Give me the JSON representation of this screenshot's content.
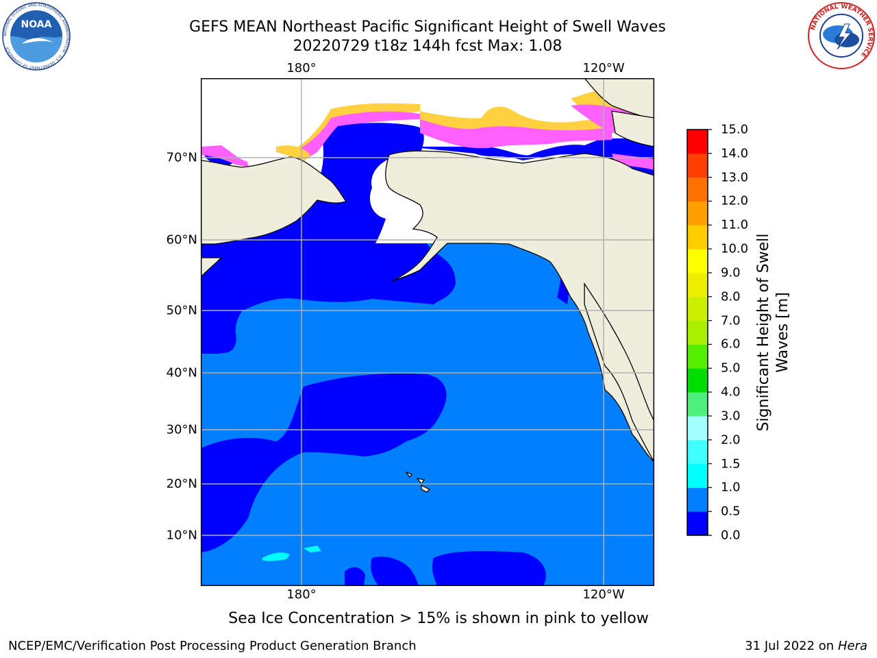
{
  "title_line1": "GEFS MEAN Northeast Pacific Significant Height of Swell Waves",
  "title_line2": "20220729 t18z 144h fcst   Max: 1.08",
  "lon_labels": [
    "180°",
    "120°W"
  ],
  "lat_labels": [
    "70°N",
    "60°N",
    "50°N",
    "40°N",
    "30°N",
    "20°N",
    "10°N"
  ],
  "colorbar": {
    "title": "Significant Height of Swell Waves [m]",
    "ticks": [
      "0.0",
      "0.5",
      "1.0",
      "1.5",
      "2.0",
      "3.0",
      "4.0",
      "5.0",
      "6.0",
      "7.0",
      "8.0",
      "9.0",
      "10.0",
      "11.0",
      "12.0",
      "13.0",
      "14.0",
      "15.0"
    ],
    "colors": [
      "#0000ff",
      "#0080ff",
      "#00ffff",
      "#40ffff",
      "#a0ffff",
      "#50f080",
      "#00dd00",
      "#55ee00",
      "#aaee00",
      "#ccee00",
      "#eeee00",
      "#ffff00",
      "#ffcc00",
      "#ffa000",
      "#ff7000",
      "#ff4000",
      "#ff0000"
    ]
  },
  "map_colors": {
    "land": "#efeddc",
    "ocean_low": "#0000ff",
    "ocean_mid": "#0080ff",
    "ocean_high": "#00ffff",
    "ice_pink": "#ff60ff",
    "ice_yellow": "#ffd040"
  },
  "note": "Sea Ice Concentration > 15% is shown in pink to yellow",
  "footer_left": "NCEP/EMC/Verification Post Processing Product Generation Branch",
  "footer_date": "31 Jul 2022 on",
  "footer_host": "Hera",
  "logos": {
    "noaa_text": "NOAA",
    "noaa_ring": "NATIONAL OCEANIC AND ATMOSPHERIC ADMINISTRATION · U.S. DEPARTMENT OF COMMERCE",
    "nws_ring": "NATIONAL WEATHER SERVICE"
  }
}
